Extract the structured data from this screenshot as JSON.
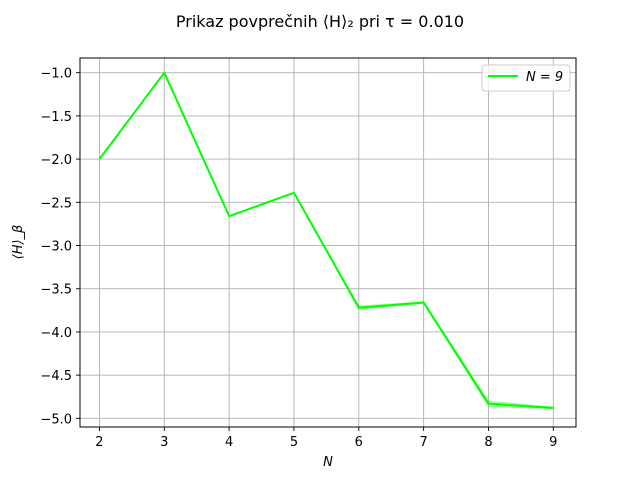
{
  "chart_data": {
    "type": "line",
    "title": "Prikaz povprečnih ⟨H⟩₂ pri τ = 0.010",
    "xlabel": "N",
    "ylabel": "⟨H⟩_β",
    "x": [
      2,
      3,
      4,
      5,
      6,
      7,
      8,
      9
    ],
    "xlim": [
      1.7,
      9.35
    ],
    "ylim": [
      -5.1,
      -0.83
    ],
    "xticks": [
      2,
      3,
      4,
      5,
      6,
      7,
      8,
      9
    ],
    "yticks": [
      -1.0,
      -1.5,
      -2.0,
      -2.5,
      -3.0,
      -3.5,
      -4.0,
      -4.5,
      -5.0
    ],
    "ytick_labels": [
      "−1.0",
      "−1.5",
      "−2.0",
      "−2.5",
      "−3.0",
      "−3.5",
      "−4.0",
      "−4.5",
      "−5.0"
    ],
    "series": [
      {
        "name": "N = 9",
        "color": "#00ff00",
        "values": [
          -2.0,
          -1.0,
          -2.66,
          -2.39,
          -3.72,
          -3.66,
          -4.83,
          -4.88
        ],
        "band_low": [
          -2.0,
          -1.0,
          -2.66,
          -2.39,
          -3.74,
          -3.67,
          -4.86,
          -4.89
        ],
        "band_high": [
          -2.0,
          -1.0,
          -2.66,
          -2.39,
          -3.7,
          -3.65,
          -4.8,
          -4.87
        ]
      }
    ],
    "grid": true,
    "legend_position": "top-right"
  }
}
